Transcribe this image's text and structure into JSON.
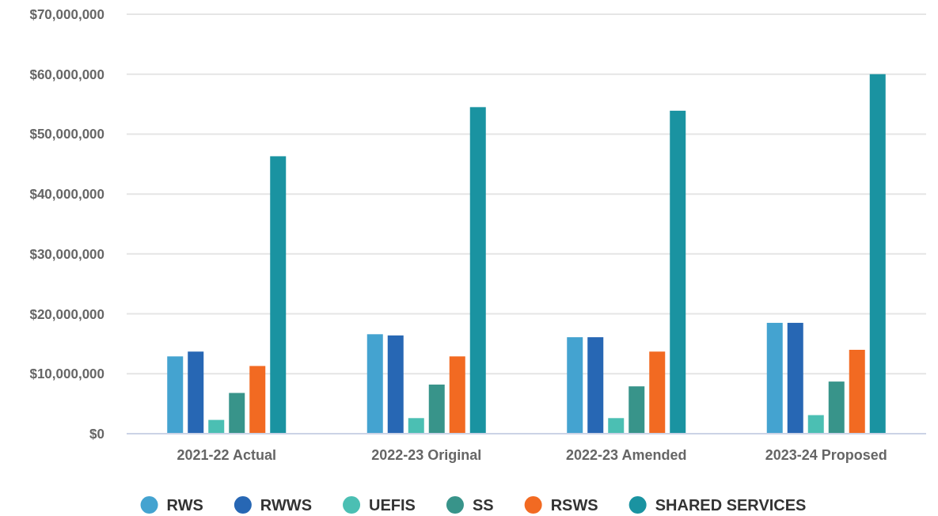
{
  "chart_data": {
    "type": "bar",
    "categories": [
      "2021-22 Actual",
      "2022-23 Original",
      "2022-23 Amended",
      "2023-24 Proposed"
    ],
    "series": [
      {
        "name": "RWS",
        "color": "#44a3d0",
        "values": [
          12900000,
          16600000,
          16100000,
          18500000
        ]
      },
      {
        "name": "RWWS",
        "color": "#2767b4",
        "values": [
          13700000,
          16400000,
          16100000,
          18500000
        ]
      },
      {
        "name": "UEFIS",
        "color": "#4bbfb3",
        "values": [
          2300000,
          2600000,
          2600000,
          3100000
        ]
      },
      {
        "name": "SS",
        "color": "#38948a",
        "values": [
          6800000,
          8200000,
          7900000,
          8700000
        ]
      },
      {
        "name": "RSWS",
        "color": "#f26a22",
        "values": [
          11300000,
          12900000,
          13700000,
          14000000
        ]
      },
      {
        "name": "SHARED SERVICES",
        "color": "#1a93a1",
        "values": [
          46300000,
          54500000,
          53900000,
          60000000
        ]
      }
    ],
    "ylim": [
      0,
      70000000
    ],
    "yticks": [
      {
        "value": 0,
        "label": "$0"
      },
      {
        "value": 10000000,
        "label": "$10,000,000"
      },
      {
        "value": 20000000,
        "label": "$20,000,000"
      },
      {
        "value": 30000000,
        "label": "$30,000,000"
      },
      {
        "value": 40000000,
        "label": "$40,000,000"
      },
      {
        "value": 50000000,
        "label": "$50,000,000"
      },
      {
        "value": 60000000,
        "label": "$60,000,000"
      },
      {
        "value": 70000000,
        "label": "$70,000,000"
      }
    ],
    "grid": "y",
    "legend": "bottom"
  }
}
